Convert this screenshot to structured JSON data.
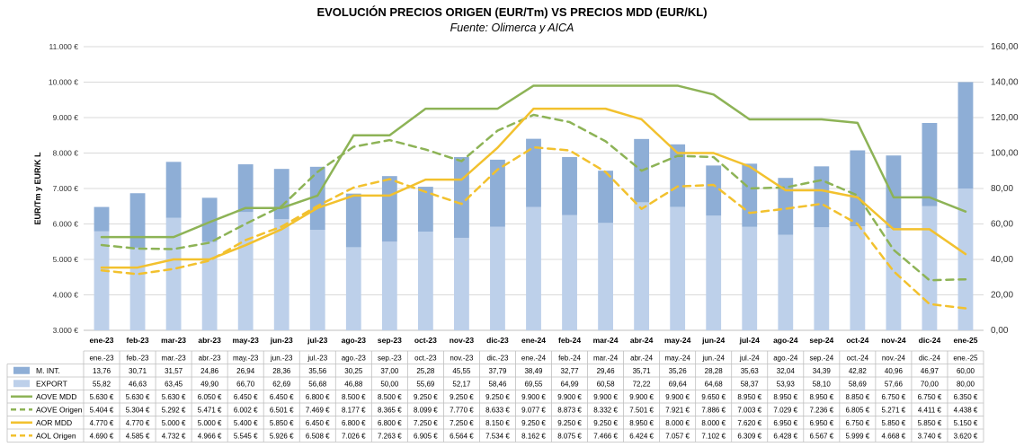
{
  "chart_data": {
    "type": "bar",
    "title": "EVOLUCIÓN PRECIOS ORIGEN (EUR/Tm) VS PRECIOS MDD (EUR/KL)",
    "subtitle": "Fuente: Olimerca y AICA",
    "ylabel": "EUR/Tm y EUR/K L",
    "categories": [
      "ene.-23",
      "feb.-23",
      "mar.-23",
      "abr.-23",
      "may.-23",
      "jun.-23",
      "jul.-23",
      "ago.-23",
      "sep.-23",
      "oct.-23",
      "nov.-23",
      "dic.-23",
      "ene.-24",
      "feb.-24",
      "mar.-24",
      "abr.-24",
      "may.-24",
      "jun.-24",
      "jul.-24",
      "ago.-24",
      "sep.-24",
      "oct.-24",
      "nov.-24",
      "dic.-24",
      "ene.-25"
    ],
    "axis_labels": [
      "ene-23",
      "feb-23",
      "mar-23",
      "abr-23",
      "may-23",
      "jun-23",
      "jul-23",
      "ago-23",
      "sep-23",
      "oct-23",
      "nov-23",
      "dic-23",
      "ene-24",
      "feb-24",
      "mar-24",
      "abr-24",
      "may-24",
      "jun-24",
      "jul-24",
      "ago-24",
      "sep-24",
      "oct-24",
      "nov-24",
      "dic-24",
      "ene-25"
    ],
    "left_axis": {
      "ylim": [
        3000,
        11000
      ],
      "ticks": [
        "3.000 €",
        "4.000 €",
        "5.000 €",
        "6.000 €",
        "7.000 €",
        "8.000 €",
        "9.000 €",
        "10.000 €",
        "11.000 €"
      ]
    },
    "right_axis": {
      "ylim": [
        0,
        160
      ],
      "ticks": [
        "0,00",
        "20,00",
        "40,00",
        "60,00",
        "80,00",
        "100,00",
        "120,00",
        "140,00",
        "160,00"
      ]
    },
    "bar_series": [
      {
        "name": "EXPORT",
        "color": "#bdd0ea",
        "values": [
          55.82,
          46.63,
          63.45,
          49.9,
          66.7,
          62.69,
          56.68,
          46.88,
          50.0,
          55.69,
          52.17,
          58.46,
          69.55,
          64.99,
          60.58,
          72.22,
          69.64,
          64.68,
          58.37,
          53.93,
          58.1,
          58.69,
          57.66,
          70.0,
          80.0
        ],
        "labels": [
          "55,82",
          "46,63",
          "63,45",
          "49,90",
          "66,70",
          "62,69",
          "56,68",
          "46,88",
          "50,00",
          "55,69",
          "52,17",
          "58,46",
          "69,55",
          "64,99",
          "60,58",
          "72,22",
          "69,64",
          "64,68",
          "58,37",
          "53,93",
          "58,10",
          "58,69",
          "57,66",
          "70,00",
          "80,00"
        ]
      },
      {
        "name": "M. INT.",
        "color": "#8eaed6",
        "values": [
          13.76,
          30.71,
          31.57,
          24.86,
          26.94,
          28.36,
          35.56,
          30.25,
          37.0,
          25.28,
          45.55,
          37.79,
          38.49,
          32.77,
          29.46,
          35.71,
          35.26,
          28.28,
          35.63,
          32.04,
          34.39,
          42.82,
          40.96,
          46.97,
          60.0
        ],
        "labels": [
          "13,76",
          "30,71",
          "31,57",
          "24,86",
          "26,94",
          "28,36",
          "35,56",
          "30,25",
          "37,00",
          "25,28",
          "45,55",
          "37,79",
          "38,49",
          "32,77",
          "29,46",
          "35,71",
          "35,26",
          "28,28",
          "35,63",
          "32,04",
          "34,39",
          "42,82",
          "40,96",
          "46,97",
          "60,00"
        ]
      }
    ],
    "line_series": [
      {
        "name": "AOVE MDD",
        "color": "#8db356",
        "dash": false,
        "values": [
          5630,
          5630,
          5630,
          6050,
          6450,
          6450,
          6800,
          8500,
          8500,
          9250,
          9250,
          9250,
          9900,
          9900,
          9900,
          9900,
          9900,
          9650,
          8950,
          8950,
          8950,
          8850,
          6750,
          6750,
          6350
        ],
        "labels": [
          "5.630 €",
          "5.630 €",
          "5.630 €",
          "6.050 €",
          "6.450 €",
          "6.450 €",
          "6.800 €",
          "8.500 €",
          "8.500 €",
          "9.250 €",
          "9.250 €",
          "9.250 €",
          "9.900 €",
          "9.900 €",
          "9.900 €",
          "9.900 €",
          "9.900 €",
          "9.650 €",
          "8.950 €",
          "8.950 €",
          "8.950 €",
          "8.850 €",
          "6.750 €",
          "6.750 €",
          "6.350 €"
        ]
      },
      {
        "name": "AOVE Origen",
        "color": "#8db356",
        "dash": true,
        "values": [
          5404,
          5304,
          5292,
          5471,
          6002,
          6501,
          7469,
          8177,
          8365,
          8099,
          7770,
          8633,
          9077,
          8873,
          8332,
          7501,
          7921,
          7886,
          7003,
          7029,
          7236,
          6805,
          5271,
          4411,
          4438
        ],
        "labels": [
          "5.404 €",
          "5.304 €",
          "5.292 €",
          "5.471 €",
          "6.002 €",
          "6.501 €",
          "7.469 €",
          "8.177 €",
          "8.365 €",
          "8.099 €",
          "7.770 €",
          "8.633 €",
          "9.077 €",
          "8.873 €",
          "8.332 €",
          "7.501 €",
          "7.921 €",
          "7.886 €",
          "7.003 €",
          "7.029 €",
          "7.236 €",
          "6.805 €",
          "5.271 €",
          "4.411 €",
          "4.438 €"
        ]
      },
      {
        "name": "AOR MDD",
        "color": "#f2c12e",
        "dash": false,
        "values": [
          4770,
          4770,
          5000,
          5000,
          5400,
          5850,
          6450,
          6800,
          6800,
          7250,
          7250,
          8150,
          9250,
          9250,
          9250,
          8950,
          8000,
          8000,
          7620,
          6950,
          6950,
          6750,
          5850,
          5850,
          5150
        ],
        "labels": [
          "4.770 €",
          "4.770 €",
          "5.000 €",
          "5.000 €",
          "5.400 €",
          "5.850 €",
          "6.450 €",
          "6.800 €",
          "6.800 €",
          "7.250 €",
          "7.250 €",
          "8.150 €",
          "9.250 €",
          "9.250 €",
          "9.250 €",
          "8.950 €",
          "8.000 €",
          "8.000 €",
          "7.620 €",
          "6.950 €",
          "6.950 €",
          "6.750 €",
          "5.850 €",
          "5.850 €",
          "5.150 €"
        ]
      },
      {
        "name": "AOL Origen",
        "color": "#f2c12e",
        "dash": true,
        "values": [
          4690,
          4585,
          4732,
          4966,
          5545,
          5926,
          6508,
          7026,
          7263,
          6905,
          6564,
          7534,
          8162,
          8075,
          7466,
          6424,
          7057,
          7102,
          6309,
          6428,
          6567,
          5999,
          4668,
          3740,
          3620
        ],
        "labels": [
          "4.690 €",
          "4.585 €",
          "4.732 €",
          "4.966 €",
          "5.545 €",
          "5.926 €",
          "6.508 €",
          "7.026 €",
          "7.263 €",
          "6.905 €",
          "6.564 €",
          "7.534 €",
          "8.162 €",
          "8.075 €",
          "7.466 €",
          "6.424 €",
          "7.057 €",
          "7.102 €",
          "6.309 €",
          "6.428 €",
          "6.567 €",
          "5.999 €",
          "4.668 €",
          "3.740 €",
          "3.620 €"
        ]
      }
    ],
    "table_row_order": [
      "M. INT.",
      "EXPORT",
      "AOVE MDD",
      "AOVE Origen",
      "AOR MDD",
      "AOL Origen"
    ]
  }
}
